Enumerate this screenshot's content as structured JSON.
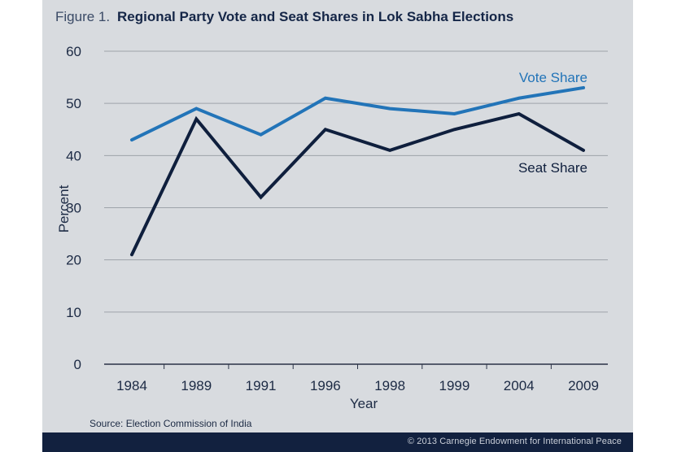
{
  "figure": {
    "label": "Figure 1.",
    "title": "Regional Party Vote and Seat Shares in Lok Sabha Elections",
    "source": "Source: Election Commission of India",
    "copyright": "© 2013 Carnegie Endowment for International Peace"
  },
  "colors": {
    "background": "#d8dbdf",
    "vote_share": "#2274b8",
    "seat_share": "#0f1f3d",
    "grid": "#9ea3aa",
    "text": "#1c2a44",
    "footer": "#12213f"
  },
  "chart_data": {
    "type": "line",
    "title": "Regional Party Vote and Seat Shares in Lok Sabha Elections",
    "xlabel": "Year",
    "ylabel": "Percent",
    "categories": [
      "1984",
      "1989",
      "1991",
      "1996",
      "1998",
      "1999",
      "2004",
      "2009"
    ],
    "ylim": [
      0,
      60
    ],
    "yticks": [
      0,
      10,
      20,
      30,
      40,
      50,
      60
    ],
    "grid": true,
    "series": [
      {
        "name": "Vote Share",
        "values": [
          43,
          49,
          44,
          51,
          49,
          48,
          51,
          53
        ]
      },
      {
        "name": "Seat Share",
        "values": [
          21,
          47,
          32,
          45,
          41,
          45,
          48,
          41
        ]
      }
    ]
  }
}
